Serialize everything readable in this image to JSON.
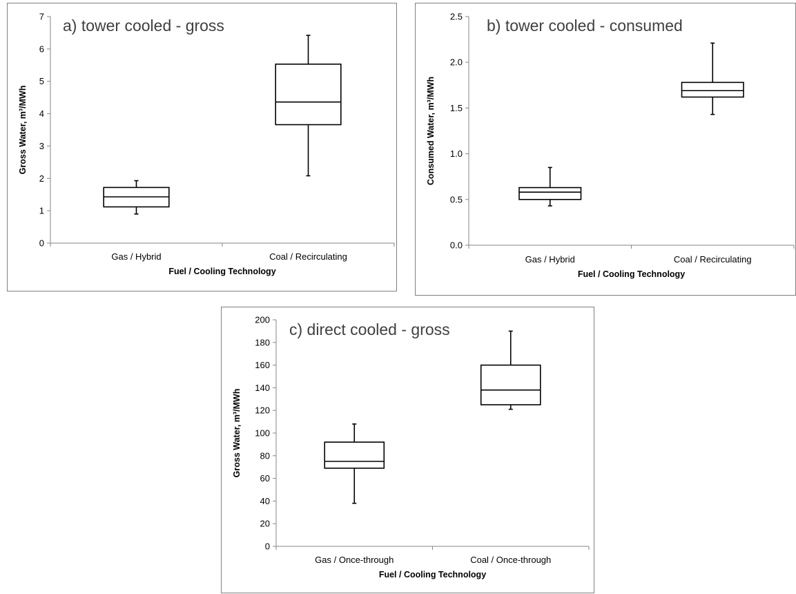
{
  "chart_data": [
    {
      "type": "box",
      "title": "a) tower cooled - gross",
      "xlabel": "Fuel / Cooling Technology",
      "ylabel": "Gross Water, m³/MWh",
      "ylim": [
        0,
        7
      ],
      "yticks": [
        "0",
        "1",
        "2",
        "3",
        "4",
        "5",
        "6",
        "7"
      ],
      "grid": false,
      "categories": [
        "Gas / Hybrid",
        "Coal / Recirculating"
      ],
      "boxes": [
        {
          "min": 0.9,
          "q1": 1.12,
          "median": 1.43,
          "q3": 1.72,
          "max": 1.93
        },
        {
          "min": 2.08,
          "q1": 3.66,
          "median": 4.36,
          "q3": 5.53,
          "max": 6.42
        }
      ]
    },
    {
      "type": "box",
      "title": "b) tower cooled - consumed",
      "xlabel": "Fuel / Cooling Technology",
      "ylabel": "Consumed Water, m³/MWh",
      "ylim": [
        0,
        2.5
      ],
      "yticks": [
        "0.0",
        "0.5",
        "1.0",
        "1.5",
        "2.0",
        "2.5"
      ],
      "grid": false,
      "categories": [
        "Gas / Hybrid",
        "Coal / Recirculating"
      ],
      "boxes": [
        {
          "min": 0.43,
          "q1": 0.5,
          "median": 0.58,
          "q3": 0.63,
          "max": 0.85
        },
        {
          "min": 1.43,
          "q1": 1.62,
          "median": 1.69,
          "q3": 1.78,
          "max": 2.21
        }
      ]
    },
    {
      "type": "box",
      "title": "c) direct cooled - gross",
      "xlabel": "Fuel / Cooling Technology",
      "ylabel": "Gross Water, m³/MWh",
      "ylim": [
        0,
        200
      ],
      "yticks": [
        "0",
        "20",
        "40",
        "60",
        "80",
        "100",
        "120",
        "140",
        "160",
        "180",
        "200"
      ],
      "grid": false,
      "categories": [
        "Gas / Once-through",
        "Coal / Once-through"
      ],
      "boxes": [
        {
          "min": 38,
          "q1": 69,
          "median": 75,
          "q3": 92,
          "max": 108
        },
        {
          "min": 121,
          "q1": 125,
          "median": 138,
          "q3": 160,
          "max": 190
        }
      ]
    }
  ],
  "colors": {
    "stroke": "#000000",
    "frame": "#7f7f7f",
    "title": "#404040",
    "axis": "#868686"
  }
}
